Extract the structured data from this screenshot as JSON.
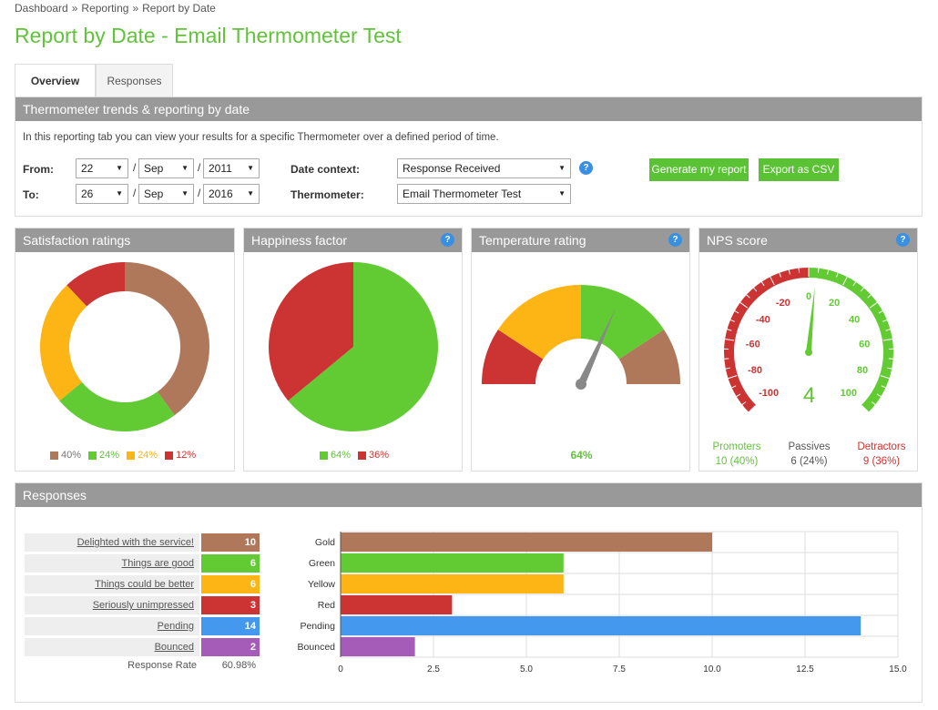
{
  "breadcrumb": [
    "Dashboard",
    "Reporting",
    "Report by Date"
  ],
  "breadcrumb_sep": "»",
  "title": "Report by Date - Email Thermometer Test",
  "tabs": [
    {
      "label": "Overview",
      "active": true
    },
    {
      "label": "Responses",
      "active": false
    }
  ],
  "filter": {
    "header": "Thermometer trends & reporting by date",
    "intro": "In this reporting tab you can view your results for a specific Thermometer over a defined period of time.",
    "from_label": "From:",
    "to_label": "To:",
    "from": {
      "day": "22",
      "month": "Sep",
      "year": "2011"
    },
    "to": {
      "day": "26",
      "month": "Sep",
      "year": "2016"
    },
    "date_sep": "/",
    "date_context_label": "Date context:",
    "date_context_value": "Response Received",
    "thermometer_label": "Thermometer:",
    "thermometer_value": "Email Thermometer Test",
    "generate_label": "Generate my report",
    "export_label": "Export as CSV",
    "help_glyph": "?"
  },
  "colors": {
    "gold": "#b0785a",
    "green": "#62cb34",
    "yellow": "#fcb514",
    "red": "#cc3333",
    "pending": "#4499ee",
    "bounced": "#a45cb8",
    "title": "#62c23a"
  },
  "satisfaction": {
    "header": "Satisfaction ratings",
    "legend": [
      {
        "label": "40%",
        "color": "#b0785a"
      },
      {
        "label": "24%",
        "color": "#62cb34"
      },
      {
        "label": "24%",
        "color": "#fcb514"
      },
      {
        "label": "12%",
        "color": "#cc3333"
      }
    ]
  },
  "happiness": {
    "header": "Happiness factor",
    "legend": [
      {
        "label": "64%",
        "color": "#62cb34"
      },
      {
        "label": "36%",
        "color": "#cc3333"
      }
    ]
  },
  "temperature": {
    "header": "Temperature rating",
    "value_label": "64%",
    "value": 0.64
  },
  "nps": {
    "header": "NPS score",
    "score": "4",
    "ticks": [
      "-100",
      "-80",
      "-60",
      "-40",
      "-20",
      "0",
      "20",
      "40",
      "60",
      "80",
      "100"
    ],
    "groups": [
      {
        "label": "Promoters",
        "value": "10 (40%)",
        "color": "#62c23a"
      },
      {
        "label": "Passives",
        "value": "6 (24%)",
        "color": "#555555"
      },
      {
        "label": "Detractors",
        "value": "9 (36%)",
        "color": "#cc3333"
      }
    ]
  },
  "responses": {
    "header": "Responses",
    "rows": [
      {
        "label": "Delighted with the service!",
        "value": "10",
        "color": "#b0785a"
      },
      {
        "label": "Things are good",
        "value": "6",
        "color": "#62cb34"
      },
      {
        "label": "Things could be better",
        "value": "6",
        "color": "#fcb514"
      },
      {
        "label": "Seriously unimpressed",
        "value": "3",
        "color": "#cc3333"
      },
      {
        "label": "Pending",
        "value": "14",
        "color": "#4499ee"
      },
      {
        "label": "Bounced",
        "value": "2",
        "color": "#a45cb8"
      }
    ],
    "response_rate_label": "Response Rate",
    "response_rate_value": "60.98%"
  },
  "chart_data": [
    {
      "type": "pie",
      "title": "Satisfaction ratings",
      "donut": true,
      "categories": [
        "Gold",
        "Green",
        "Yellow",
        "Red"
      ],
      "values": [
        40,
        24,
        24,
        12
      ]
    },
    {
      "type": "pie",
      "title": "Happiness factor",
      "categories": [
        "Green",
        "Red"
      ],
      "values": [
        64,
        36
      ]
    },
    {
      "type": "bar",
      "orientation": "horizontal",
      "categories": [
        "Gold",
        "Green",
        "Yellow",
        "Red",
        "Pending",
        "Bounced"
      ],
      "values": [
        10,
        6,
        6,
        3,
        14,
        2
      ],
      "colors": [
        "#b0785a",
        "#62cb34",
        "#fcb514",
        "#cc3333",
        "#4499ee",
        "#a45cb8"
      ],
      "xlim": [
        0,
        15
      ],
      "xticks": [
        "0",
        "2.5",
        "5.0",
        "7.5",
        "10.0",
        "12.5",
        "15.0"
      ],
      "grid": true
    }
  ]
}
